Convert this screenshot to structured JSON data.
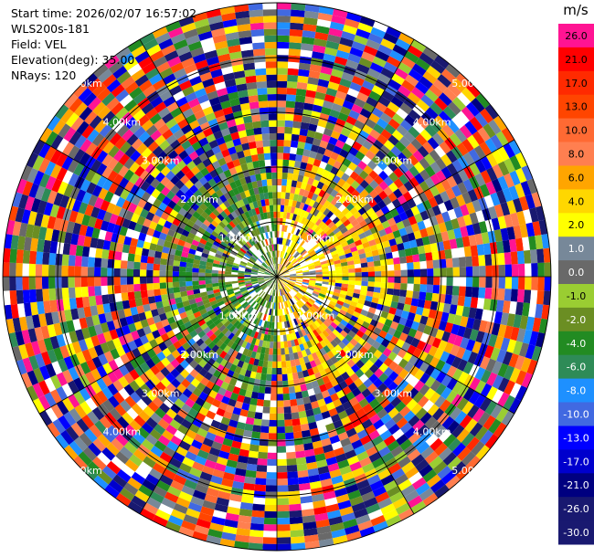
{
  "header": {
    "start_time": "Start time: 2026/02/07 16:57:02",
    "instrument": "WLS200s-181",
    "field": "Field: VEL",
    "elevation": "Elevation(deg): 35.00",
    "nrays": "NRays: 120"
  },
  "colorbar": {
    "unit": "m/s",
    "levels": [
      {
        "label": "26.0",
        "color": "#ff1493"
      },
      {
        "label": "21.0",
        "color": "#ff0000"
      },
      {
        "label": "17.0",
        "color": "#ff2a00"
      },
      {
        "label": "13.0",
        "color": "#ff4500"
      },
      {
        "label": "10.0",
        "color": "#ff6a33"
      },
      {
        "label": "8.0",
        "color": "#ff7f50"
      },
      {
        "label": "6.0",
        "color": "#ffa500"
      },
      {
        "label": "4.0",
        "color": "#ffd700"
      },
      {
        "label": "2.0",
        "color": "#ffff00"
      },
      {
        "label": "1.0",
        "color": "#778899"
      },
      {
        "label": "0.0",
        "color": "#696969"
      },
      {
        "label": "-1.0",
        "color": "#9acd32"
      },
      {
        "label": "-2.0",
        "color": "#6b8e23"
      },
      {
        "label": "-4.0",
        "color": "#228b22"
      },
      {
        "label": "-6.0",
        "color": "#2e8b57"
      },
      {
        "label": "-8.0",
        "color": "#1e90ff"
      },
      {
        "label": "-10.0",
        "color": "#4169e1"
      },
      {
        "label": "-13.0",
        "color": "#0000ff"
      },
      {
        "label": "-17.0",
        "color": "#0000cd"
      },
      {
        "label": "-21.0",
        "color": "#000080"
      },
      {
        "label": "-26.0",
        "color": "#191970"
      },
      {
        "label": "-30.0",
        "color": "#191970"
      }
    ]
  },
  "chart_data": {
    "type": "heatmap",
    "projection": "polar-ppi",
    "field": "VEL",
    "nrays": 120,
    "ring_labels": [
      "1.00km",
      "2.00km",
      "3.00km",
      "4.00km",
      "5.00km"
    ],
    "range_rings_km": [
      1,
      2,
      3,
      4,
      5
    ],
    "max_range_km": 5.0,
    "pattern": "near-range positive (yellow/orange) to the east, negative (green) to the west; far range noisy across full scale"
  }
}
